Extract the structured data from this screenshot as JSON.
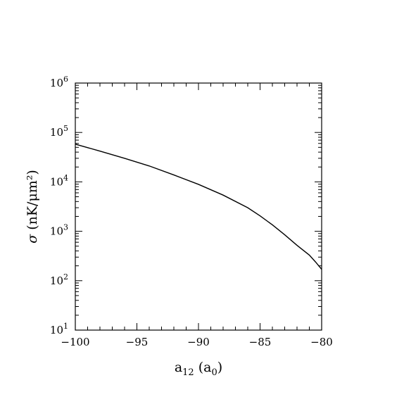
{
  "chart_data": {
    "type": "line",
    "title": "",
    "xlabel": {
      "main": "a",
      "sub": "12",
      "paren_open": " (a",
      "paren_sub": "0",
      "paren_close": ")"
    },
    "ylabel": {
      "main": "σ",
      "unit": "(nK/μm²)"
    },
    "xlim": [
      -100,
      -80
    ],
    "ylim": [
      10,
      1000000
    ],
    "yscale": "log",
    "grid": false,
    "x_ticks": [
      {
        "value": -100,
        "label": "−100"
      },
      {
        "value": -95,
        "label": "−95"
      },
      {
        "value": -90,
        "label": "−90"
      },
      {
        "value": -85,
        "label": "−85"
      },
      {
        "value": -80,
        "label": "−80"
      }
    ],
    "y_ticks": [
      {
        "value": 10,
        "base": "10",
        "exp": "1"
      },
      {
        "value": 100,
        "base": "10",
        "exp": "2"
      },
      {
        "value": 1000,
        "base": "10",
        "exp": "3"
      },
      {
        "value": 10000,
        "base": "10",
        "exp": "4"
      },
      {
        "value": 100000,
        "base": "10",
        "exp": "5"
      },
      {
        "value": 1000000,
        "base": "10",
        "exp": "6"
      }
    ],
    "series": [
      {
        "x": [
          -100,
          -98,
          -96,
          -94,
          -92,
          -90,
          -88,
          -86,
          -85,
          -84,
          -83,
          -82,
          -81,
          -80.5,
          -80
        ],
        "y": [
          58000,
          42000,
          30000,
          21000,
          13800,
          8900,
          5400,
          3000,
          2050,
          1350,
          850,
          520,
          330,
          240,
          170
        ]
      }
    ]
  }
}
